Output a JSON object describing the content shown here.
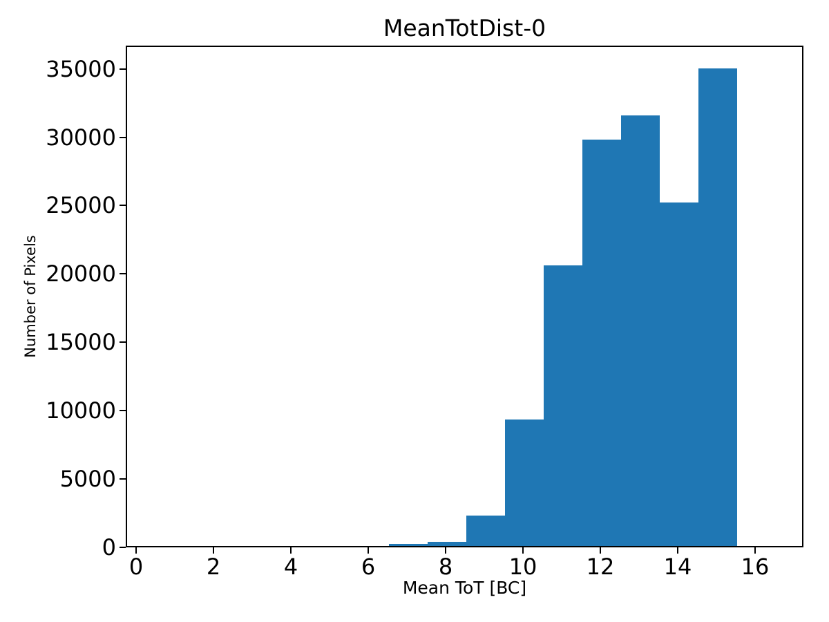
{
  "figure": {
    "background": "#ffffff",
    "text_color": "#000000"
  },
  "chart_data": {
    "type": "bar",
    "subtype": "histogram",
    "title": "MeanTotDist-0",
    "xlabel": "Mean ToT [BC]",
    "ylabel": "Number of Pixels",
    "bar_color": "#1f77b4",
    "bin_width": 1,
    "bin_centers": [
      7,
      8,
      9,
      10,
      11,
      12,
      13,
      14,
      15
    ],
    "values": [
      130,
      300,
      2210,
      9240,
      20500,
      29720,
      31500,
      25100,
      34940
    ],
    "x_ticks": [
      0,
      2,
      4,
      6,
      8,
      10,
      12,
      14,
      16
    ],
    "y_ticks": [
      0,
      5000,
      10000,
      15000,
      20000,
      25000,
      30000,
      35000
    ],
    "xlim": [
      -0.27,
      17.25
    ],
    "ylim": [
      0,
      36700
    ],
    "grid": false,
    "legend_position": "none"
  }
}
